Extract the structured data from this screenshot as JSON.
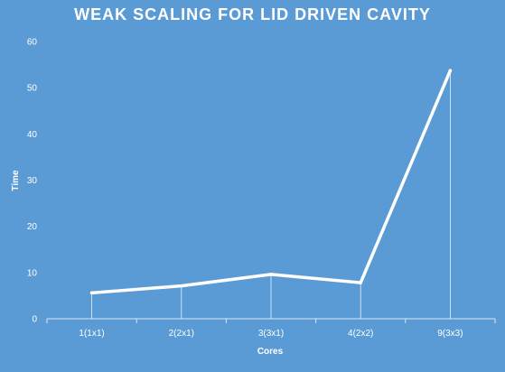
{
  "chart_data": {
    "type": "line",
    "title": "WEAK SCALING FOR LID DRIVEN CAVITY",
    "xlabel": "Cores",
    "ylabel": "Time",
    "categories": [
      "1(1x1)",
      "2(2x1)",
      "3(3x1)",
      "4(2x2)",
      "9(3x3)"
    ],
    "series": [
      {
        "values": [
          5.6,
          7.1,
          9.6,
          7.8,
          53.7
        ]
      }
    ],
    "ylim": [
      0,
      60
    ],
    "yticks": [
      0,
      10,
      20,
      30,
      40,
      50,
      60
    ],
    "grid": false,
    "drop_lines": true,
    "colors": {
      "background": "#5b9bd5",
      "line": "#ffffff",
      "text": "#ffffff"
    }
  }
}
